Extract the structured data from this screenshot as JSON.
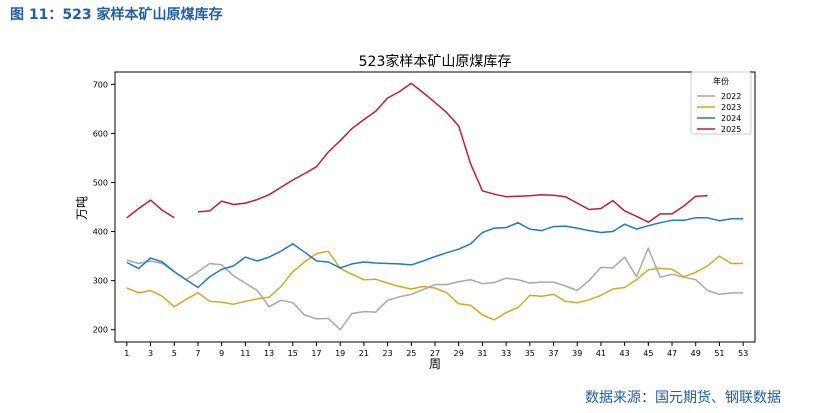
{
  "figure_label": "图 11：523 家样本矿山原煤库存",
  "source_note": "数据来源：国元期货、钢联数据",
  "chart_data": {
    "type": "line",
    "title": "523家样本矿山原煤库存",
    "xlabel": "周",
    "ylabel": "万吨",
    "xlim": [
      0,
      54
    ],
    "ylim": [
      175,
      725
    ],
    "xticks": [
      1,
      3,
      5,
      7,
      9,
      11,
      13,
      15,
      17,
      19,
      21,
      23,
      25,
      27,
      29,
      31,
      33,
      35,
      37,
      39,
      41,
      43,
      45,
      47,
      49,
      51,
      53
    ],
    "yticks": [
      200,
      300,
      400,
      500,
      600,
      700
    ],
    "legend_title": "年份",
    "legend_position": "top-right",
    "x": [
      1,
      2,
      3,
      4,
      5,
      6,
      7,
      8,
      9,
      10,
      11,
      12,
      13,
      14,
      15,
      16,
      17,
      18,
      19,
      20,
      21,
      22,
      23,
      24,
      25,
      26,
      27,
      28,
      29,
      30,
      31,
      32,
      33,
      34,
      35,
      36,
      37,
      38,
      39,
      40,
      41,
      42,
      43,
      44,
      45,
      46,
      47,
      48,
      49,
      50,
      51,
      52,
      53
    ],
    "series": [
      {
        "name": "2022",
        "color": "#a9a9a9",
        "values": [
          342,
          335,
          340,
          335,
          318,
          302,
          318,
          335,
          332,
          310,
          295,
          280,
          247,
          260,
          255,
          230,
          222,
          223,
          200,
          233,
          237,
          236,
          260,
          267,
          272,
          282,
          292,
          292,
          298,
          302,
          294,
          296,
          305,
          302,
          295,
          297,
          297,
          289,
          280,
          300,
          327,
          326,
          348,
          308,
          366,
          307,
          313,
          307,
          302,
          280,
          272,
          275,
          275
        ]
      },
      {
        "name": "2023",
        "color": "#d4a91f",
        "values": [
          285,
          275,
          280,
          268,
          247,
          262,
          275,
          258,
          256,
          252,
          258,
          263,
          266,
          288,
          318,
          338,
          355,
          360,
          325,
          313,
          302,
          303,
          295,
          288,
          283,
          288,
          285,
          275,
          253,
          250,
          230,
          220,
          235,
          245,
          270,
          268,
          272,
          258,
          255,
          261,
          270,
          283,
          286,
          302,
          322,
          325,
          323,
          308,
          317,
          330,
          350,
          335,
          335
        ]
      },
      {
        "name": "2024",
        "color": "#1f78d1",
        "values": [
          337,
          325,
          346,
          338,
          318,
          302,
          286,
          308,
          323,
          330,
          348,
          340,
          348,
          360,
          375,
          358,
          340,
          338,
          326,
          334,
          338,
          336,
          335,
          334,
          332,
          340,
          349,
          357,
          364,
          375,
          398,
          407,
          408,
          418,
          405,
          402,
          410,
          411,
          407,
          402,
          398,
          400,
          415,
          405,
          412,
          418,
          423,
          423,
          428,
          428,
          422,
          426,
          426
        ]
      },
      {
        "name": "2025",
        "color": "#c01f2c",
        "values": [
          428,
          447,
          464,
          443,
          428,
          null,
          440,
          442,
          462,
          455,
          458,
          465,
          475,
          490,
          505,
          518,
          532,
          562,
          585,
          610,
          628,
          645,
          672,
          685,
          702,
          683,
          663,
          642,
          615,
          538,
          483,
          476,
          471,
          472,
          473,
          475,
          474,
          471,
          458,
          445,
          447,
          463,
          442,
          431,
          419,
          436,
          436,
          452,
          472,
          473,
          null,
          null,
          null
        ]
      }
    ]
  }
}
